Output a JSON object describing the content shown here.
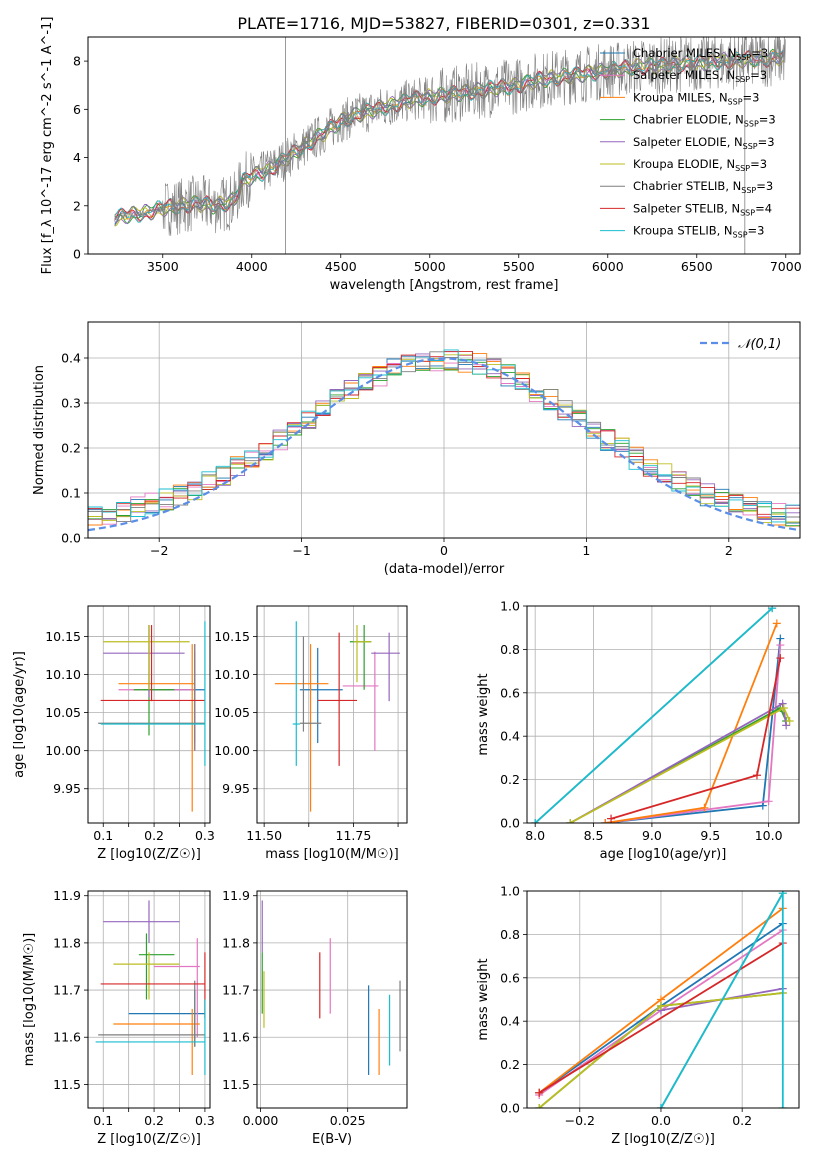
{
  "figure_title": "PLATE=1716, MJD=53827, FIBERID=0301, z=0.331",
  "colors": {
    "chabrier_miles": "#1f77b4",
    "salpeter_miles": "#e377c2",
    "kroupa_miles": "#ff7f0e",
    "chabrier_elodie": "#2ca02c",
    "salpeter_elodie": "#9467bd",
    "kroupa_elodie": "#bcbd22",
    "chabrier_stelib": "#7f7f7f",
    "salpeter_stelib": "#d62728",
    "kroupa_stelib": "#17becf",
    "normal_curve": "#5b8ee6",
    "data_spectrum": "#808080",
    "grid": "#b0b0b0"
  },
  "chart_data": [
    {
      "id": "spectrum",
      "type": "line",
      "xlabel": "wavelength [Angstrom, rest frame]",
      "ylabel": "Flux [f_λ 10^-17 erg cm^-2 s^-1 A^-1]",
      "xlim": [
        3080,
        7080
      ],
      "ylim": [
        0,
        9
      ],
      "xticks": [
        3500,
        4000,
        4500,
        5000,
        5500,
        6000,
        6500,
        7000
      ],
      "yticks": [
        0,
        2,
        4,
        6,
        8
      ],
      "grid": false,
      "legend_position": "right",
      "legend": [
        "Chabrier MILES, N_SSP=3",
        "Salpeter MILES, N_SSP=3",
        "Kroupa MILES, N_SSP=3",
        "Chabrier ELODIE, N_SSP=3",
        "Salpeter ELODIE, N_SSP=3",
        "Kroupa ELODIE, N_SSP=3",
        "Chabrier STELIB, N_SSP=3",
        "Salpeter STELIB, N_SSP=4",
        "Kroupa STELIB, N_SSP=3"
      ],
      "continuum": {
        "x": [
          3230,
          3300,
          3400,
          3500,
          3600,
          3700,
          3800,
          3900,
          3950,
          4000,
          4100,
          4200,
          4300,
          4400,
          4500,
          4600,
          4700,
          4800,
          4900,
          5000,
          5100,
          5200,
          5300,
          5400,
          5500,
          5600,
          5700,
          5800,
          5900,
          6000,
          6100,
          6200,
          6300,
          6400,
          6500,
          6600,
          6700,
          6800,
          6900,
          7000
        ],
        "y": [
          1.5,
          1.6,
          1.7,
          1.9,
          2.0,
          2.1,
          2.0,
          2.2,
          3.0,
          3.2,
          3.5,
          4.0,
          4.5,
          5.0,
          5.5,
          5.8,
          6.0,
          6.2,
          6.4,
          6.5,
          6.6,
          6.7,
          6.8,
          6.9,
          7.0,
          7.2,
          7.3,
          7.4,
          7.5,
          7.6,
          7.7,
          7.8,
          7.8,
          7.9,
          7.9,
          8.0,
          8.0,
          8.1,
          8.1,
          8.2
        ]
      }
    },
    {
      "id": "residuals",
      "type": "line",
      "xlabel": "(data-model)/error",
      "ylabel": "Normed distribution",
      "xlim": [
        -2.5,
        2.5
      ],
      "ylim": [
        0,
        0.48
      ],
      "xticks": [
        -2,
        -1,
        0,
        1,
        2
      ],
      "yticks": [
        0.0,
        0.1,
        0.2,
        0.3,
        0.4
      ],
      "grid": true,
      "legend_position": "top-right",
      "legend": [
        "𝒩(0,1)"
      ]
    },
    {
      "id": "age_vs_Z",
      "type": "scatter",
      "xlabel": "Z [log10(Z/Z☉)]",
      "ylabel": "age  [log10(age/yr)]",
      "xlim": [
        0.07,
        0.31
      ],
      "ylim": [
        9.905,
        10.19
      ],
      "xticks": [
        0.1,
        0.15,
        0.2,
        0.25,
        0.3
      ],
      "xtick_labels": [
        "0.1",
        "",
        "0.2",
        "",
        "0.3"
      ],
      "yticks": [
        9.95,
        10.0,
        10.05,
        10.1,
        10.15
      ],
      "grid": true,
      "points": [
        {
          "model": "Chabrier MILES",
          "x": 0.28,
          "xlo": 0.18,
          "xhi": 0.3,
          "y": 10.08,
          "ylo": 10.01,
          "yhi": 10.13
        },
        {
          "model": "Salpeter MILES",
          "x": 0.28,
          "xlo": 0.13,
          "xhi": 0.28,
          "y": 10.08,
          "ylo": 10.0,
          "yhi": 10.14
        },
        {
          "model": "Kroupa MILES",
          "x": 0.275,
          "xlo": 0.13,
          "xhi": 0.28,
          "y": 10.088,
          "ylo": 9.92,
          "yhi": 10.14
        },
        {
          "model": "Chabrier ELODIE",
          "x": 0.19,
          "xlo": 0.16,
          "xhi": 0.24,
          "y": 10.08,
          "ylo": 10.02,
          "yhi": 10.165
        },
        {
          "model": "Salpeter ELODIE",
          "x": 0.19,
          "xlo": 0.1,
          "xhi": 0.26,
          "y": 10.128,
          "ylo": 10.07,
          "yhi": 10.165
        },
        {
          "model": "Kroupa ELODIE",
          "x": 0.19,
          "xlo": 0.1,
          "xhi": 0.27,
          "y": 10.143,
          "ylo": 10.08,
          "yhi": 10.165
        },
        {
          "model": "Chabrier STELIB",
          "x": 0.28,
          "xlo": 0.09,
          "xhi": 0.3,
          "y": 10.036,
          "ylo": 10.0,
          "yhi": 10.14
        },
        {
          "model": "Salpeter STELIB",
          "x": 0.195,
          "xlo": 0.095,
          "xhi": 0.3,
          "y": 10.066,
          "ylo": 10.065,
          "yhi": 10.165
        },
        {
          "model": "Kroupa STELIB",
          "x": 0.3,
          "xlo": 0.095,
          "xhi": 0.3,
          "y": 10.035,
          "ylo": 9.98,
          "yhi": 10.17
        }
      ]
    },
    {
      "id": "age_vs_mass",
      "type": "scatter",
      "xlabel": "mass [log10(M/M☉)]",
      "ylabel": "",
      "xlim": [
        11.48,
        11.9
      ],
      "ylim": [
        9.905,
        10.19
      ],
      "xticks": [
        11.5,
        11.625,
        11.75,
        11.875
      ],
      "xtick_labels": [
        "11.50",
        "",
        "11.75",
        ""
      ],
      "yticks": [
        9.95,
        10.0,
        10.05,
        10.1,
        10.15
      ],
      "grid": true,
      "points": [
        {
          "model": "Chabrier MILES",
          "x": 11.65,
          "xlo": 11.6,
          "xhi": 11.72,
          "y": 10.08,
          "ylo": 10.01,
          "yhi": 10.135
        },
        {
          "model": "Salpeter MILES",
          "x": 11.81,
          "xlo": 11.72,
          "xhi": 11.82,
          "y": 10.085,
          "ylo": 10.0,
          "yhi": 10.13
        },
        {
          "model": "Kroupa MILES",
          "x": 11.63,
          "xlo": 11.53,
          "xhi": 11.68,
          "y": 10.088,
          "ylo": 9.92,
          "yhi": 10.14
        },
        {
          "model": "Chabrier ELODIE",
          "x": 11.78,
          "xlo": 11.74,
          "xhi": 11.8,
          "y": 10.143,
          "ylo": 10.08,
          "yhi": 10.165
        },
        {
          "model": "Salpeter ELODIE",
          "x": 11.85,
          "xlo": 11.8,
          "xhi": 11.88,
          "y": 10.128,
          "ylo": 10.065,
          "yhi": 10.155
        },
        {
          "model": "Kroupa ELODIE",
          "x": 11.76,
          "xlo": 11.75,
          "xhi": 11.8,
          "y": 10.143,
          "ylo": 10.09,
          "yhi": 10.165
        },
        {
          "model": "Chabrier STELIB",
          "x": 11.61,
          "xlo": 11.6,
          "xhi": 11.66,
          "y": 10.036,
          "ylo": 10.025,
          "yhi": 10.15
        },
        {
          "model": "Salpeter STELIB",
          "x": 11.71,
          "xlo": 11.65,
          "xhi": 11.76,
          "y": 10.066,
          "ylo": 9.98,
          "yhi": 10.155
        },
        {
          "model": "Kroupa STELIB",
          "x": 11.59,
          "xlo": 11.58,
          "xhi": 11.6,
          "y": 10.035,
          "ylo": 9.98,
          "yhi": 10.17
        }
      ]
    },
    {
      "id": "weight_vs_age",
      "type": "line",
      "xlabel": "age  [log10(age/yr)]",
      "ylabel": "mass weight",
      "xlim": [
        7.93,
        10.26
      ],
      "ylim": [
        0,
        1
      ],
      "xticks": [
        8.0,
        8.5,
        9.0,
        9.5,
        10.0
      ],
      "yticks": [
        0.0,
        0.2,
        0.4,
        0.6,
        0.8,
        1.0
      ],
      "grid": true,
      "series": [
        {
          "model": "Chabrier MILES",
          "x": [
            8.6,
            9.95,
            10.1
          ],
          "y": [
            0.0,
            0.08,
            0.85
          ]
        },
        {
          "model": "Salpeter MILES",
          "x": [
            8.6,
            10.0,
            10.1
          ],
          "y": [
            0.0,
            0.1,
            0.82
          ]
        },
        {
          "model": "Kroupa MILES",
          "x": [
            8.6,
            9.45,
            10.07
          ],
          "y": [
            0.0,
            0.07,
            0.92
          ]
        },
        {
          "model": "Chabrier ELODIE",
          "x": [
            8.3,
            10.1,
            10.15
          ],
          "y": [
            0.0,
            0.53,
            0.47
          ]
        },
        {
          "model": "Salpeter ELODIE",
          "x": [
            8.3,
            10.12,
            10.15
          ],
          "y": [
            0.0,
            0.55,
            0.45
          ]
        },
        {
          "model": "Kroupa ELODIE",
          "x": [
            8.3,
            10.13,
            10.18
          ],
          "y": [
            0.0,
            0.53,
            0.47
          ]
        },
        {
          "model": "Chabrier STELIB",
          "x": [
            8.0,
            10.03
          ],
          "y": [
            0.0,
            0.99
          ]
        },
        {
          "model": "Salpeter STELIB",
          "x": [
            8.65,
            9.9,
            10.1
          ],
          "y": [
            0.02,
            0.22,
            0.76
          ]
        },
        {
          "model": "Kroupa STELIB",
          "x": [
            8.0,
            10.03
          ],
          "y": [
            0.0,
            0.99
          ]
        }
      ]
    },
    {
      "id": "mass_vs_Z",
      "type": "scatter",
      "xlabel": "Z [log10(Z/Z☉)]",
      "ylabel": "mass [log10(M/M☉)]",
      "xlim": [
        0.07,
        0.31
      ],
      "ylim": [
        11.45,
        11.91
      ],
      "xticks": [
        0.1,
        0.15,
        0.2,
        0.25,
        0.3
      ],
      "xtick_labels": [
        "0.1",
        "",
        "0.2",
        "",
        "0.3"
      ],
      "yticks": [
        11.5,
        11.6,
        11.7,
        11.8,
        11.9
      ],
      "grid": true,
      "points": [
        {
          "model": "Chabrier MILES",
          "x": 0.28,
          "xlo": 0.15,
          "xhi": 0.3,
          "y": 11.65,
          "ylo": 11.58,
          "yhi": 11.7
        },
        {
          "model": "Salpeter MILES",
          "x": 0.285,
          "xlo": 0.2,
          "xhi": 0.29,
          "y": 11.75,
          "ylo": 11.6,
          "yhi": 11.81
        },
        {
          "model": "Kroupa MILES",
          "x": 0.275,
          "xlo": 0.12,
          "xhi": 0.29,
          "y": 11.628,
          "ylo": 11.52,
          "yhi": 11.66
        },
        {
          "model": "Chabrier ELODIE",
          "x": 0.185,
          "xlo": 0.17,
          "xhi": 0.24,
          "y": 11.775,
          "ylo": 11.68,
          "yhi": 11.82
        },
        {
          "model": "Salpeter ELODIE",
          "x": 0.19,
          "xlo": 0.1,
          "xhi": 0.25,
          "y": 11.845,
          "ylo": 11.8,
          "yhi": 11.89
        },
        {
          "model": "Kroupa ELODIE",
          "x": 0.19,
          "xlo": 0.12,
          "xhi": 0.25,
          "y": 11.755,
          "ylo": 11.68,
          "yhi": 11.78
        },
        {
          "model": "Chabrier STELIB",
          "x": 0.28,
          "xlo": 0.09,
          "xhi": 0.3,
          "y": 11.605,
          "ylo": 11.58,
          "yhi": 11.72
        },
        {
          "model": "Salpeter STELIB",
          "x": 0.3,
          "xlo": 0.095,
          "xhi": 0.3,
          "y": 11.713,
          "ylo": 11.64,
          "yhi": 11.78
        },
        {
          "model": "Kroupa STELIB",
          "x": 0.3,
          "xlo": 0.085,
          "xhi": 0.3,
          "y": 11.59,
          "ylo": 11.52,
          "yhi": 11.68
        }
      ]
    },
    {
      "id": "mass_vs_EBV",
      "type": "scatter",
      "xlabel": "E(B-V)",
      "ylabel": "",
      "xlim": [
        -0.001,
        0.042
      ],
      "ylim": [
        11.45,
        11.91
      ],
      "xticks": [
        0.0,
        0.025
      ],
      "xtick_labels": [
        "0.000",
        "0.025"
      ],
      "yticks": [
        11.5,
        11.6,
        11.7,
        11.8,
        11.9
      ],
      "grid": true,
      "points": [
        {
          "model": "Chabrier MILES",
          "x": 0.031,
          "ylo": 11.52,
          "yhi": 11.71
        },
        {
          "model": "Salpeter MILES",
          "x": 0.02,
          "ylo": 11.65,
          "yhi": 11.81
        },
        {
          "model": "Kroupa MILES",
          "x": 0.034,
          "ylo": 11.52,
          "yhi": 11.66
        },
        {
          "model": "Chabrier ELODIE",
          "x": 0.0005,
          "ylo": 11.65,
          "yhi": 11.78
        },
        {
          "model": "Salpeter ELODIE",
          "x": 0.0005,
          "ylo": 11.78,
          "yhi": 11.89
        },
        {
          "model": "Kroupa ELODIE",
          "x": 0.001,
          "ylo": 11.62,
          "yhi": 11.74
        },
        {
          "model": "Chabrier STELIB",
          "x": 0.04,
          "ylo": 11.57,
          "yhi": 11.72
        },
        {
          "model": "Salpeter STELIB",
          "x": 0.017,
          "ylo": 11.64,
          "yhi": 11.78
        },
        {
          "model": "Kroupa STELIB",
          "x": 0.037,
          "ylo": 11.54,
          "yhi": 11.69
        }
      ]
    },
    {
      "id": "weight_vs_Z",
      "type": "line",
      "xlabel": "Z [log10(Z/Z☉)]",
      "ylabel": "mass weight",
      "xlim": [
        -0.33,
        0.34
      ],
      "ylim": [
        0,
        1
      ],
      "xticks": [
        -0.2,
        0.0,
        0.2
      ],
      "yticks": [
        0.0,
        0.2,
        0.4,
        0.6,
        0.8,
        1.0
      ],
      "grid": true,
      "series": [
        {
          "model": "Chabrier MILES",
          "x": [
            -0.3,
            0.0,
            0.3
          ],
          "y": [
            0.07,
            0.47,
            0.85
          ]
        },
        {
          "model": "Salpeter MILES",
          "x": [
            -0.3,
            0.0,
            0.3
          ],
          "y": [
            0.06,
            0.45,
            0.82
          ]
        },
        {
          "model": "Kroupa MILES",
          "x": [
            -0.3,
            0.0,
            0.3
          ],
          "y": [
            0.07,
            0.5,
            0.92
          ]
        },
        {
          "model": "Chabrier ELODIE",
          "x": [
            -0.3,
            0.0,
            0.3
          ],
          "y": [
            0.0,
            0.47,
            0.53
          ]
        },
        {
          "model": "Salpeter ELODIE",
          "x": [
            0.0,
            0.3
          ],
          "y": [
            0.45,
            0.55
          ]
        },
        {
          "model": "Kroupa ELODIE",
          "x": [
            -0.3,
            0.0,
            0.3
          ],
          "y": [
            0.0,
            0.47,
            0.53
          ]
        },
        {
          "model": "Chabrier STELIB",
          "x": [
            0.0,
            0.3
          ],
          "y": [
            0.0,
            0.99
          ]
        },
        {
          "model": "Salpeter STELIB",
          "x": [
            -0.3,
            0.3
          ],
          "y": [
            0.07,
            0.76
          ]
        },
        {
          "model": "Kroupa STELIB",
          "x": [
            0.0,
            0.3,
            0.3
          ],
          "y": [
            0.0,
            0.99,
            0.0
          ]
        }
      ]
    }
  ]
}
